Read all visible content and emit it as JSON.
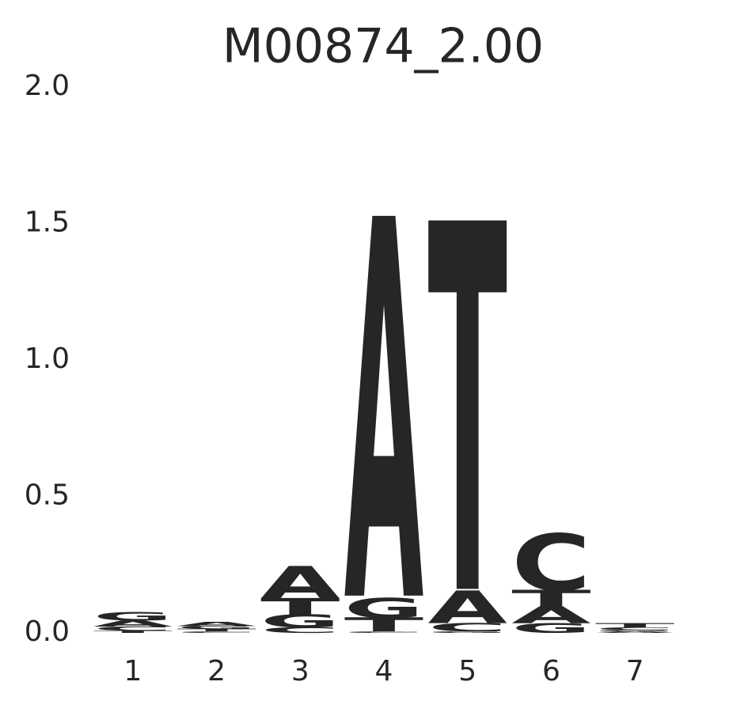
{
  "chart_data": {
    "type": "logo",
    "title": "M00874_2.00",
    "categories": [
      "1",
      "2",
      "3",
      "4",
      "5",
      "6",
      "7"
    ],
    "colors": {
      "A": "#008000",
      "C": "#0000ff",
      "G": "#ffa500",
      "T": "#ff0000"
    },
    "stacks": [
      [
        {
          "letter": "T",
          "value": 0.008
        },
        {
          "letter": "C",
          "value": 0.015
        },
        {
          "letter": "A",
          "value": 0.022
        },
        {
          "letter": "G",
          "value": 0.03
        }
      ],
      [
        {
          "letter": "C",
          "value": 0.005
        },
        {
          "letter": "T",
          "value": 0.01
        },
        {
          "letter": "G",
          "value": 0.01
        },
        {
          "letter": "A",
          "value": 0.015
        }
      ],
      [
        {
          "letter": "C",
          "value": 0.02
        },
        {
          "letter": "G",
          "value": 0.045
        },
        {
          "letter": "T",
          "value": 0.06
        },
        {
          "letter": "A",
          "value": 0.115
        }
      ],
      [
        {
          "letter": "C",
          "value": 0.005
        },
        {
          "letter": "T",
          "value": 0.05
        },
        {
          "letter": "G",
          "value": 0.07
        },
        {
          "letter": "A",
          "value": 1.34
        }
      ],
      [
        {
          "letter": "G",
          "value": 0.005
        },
        {
          "letter": "C",
          "value": 0.03
        },
        {
          "letter": "A",
          "value": 0.115
        },
        {
          "letter": "T",
          "value": 1.3
        }
      ],
      [
        {
          "letter": "G",
          "value": 0.035
        },
        {
          "letter": "A",
          "value": 0.06
        },
        {
          "letter": "T",
          "value": 0.06
        },
        {
          "letter": "C",
          "value": 0.2
        }
      ],
      [
        {
          "letter": "A",
          "value": 0.005
        },
        {
          "letter": "G",
          "value": 0.005
        },
        {
          "letter": "C",
          "value": 0.01
        },
        {
          "letter": "T",
          "value": 0.015
        }
      ]
    ],
    "ylim": [
      0,
      2
    ],
    "yticks": [
      {
        "value": 0,
        "label": "0.0"
      },
      0.5,
      {
        "value": 1,
        "label": "1.0"
      },
      1.5,
      {
        "value": 2,
        "label": "2.0"
      }
    ],
    "grid": false
  }
}
